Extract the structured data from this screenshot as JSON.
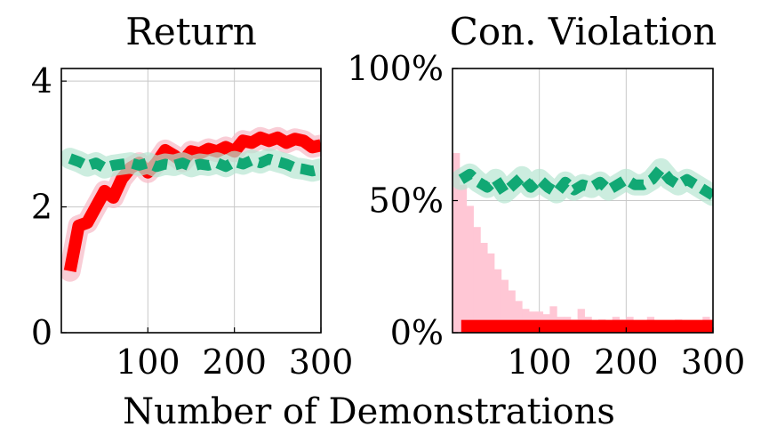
{
  "figure": {
    "shared_xlabel": "Number of Demonstrations"
  },
  "colors": {
    "red": "#ff0000",
    "red_band": "#f6b8c4",
    "green": "#11a874",
    "green_band": "#b7e6d2",
    "hist": "#ffc7d5"
  },
  "chart_data": [
    {
      "type": "line",
      "title": "Return",
      "xlabel": "",
      "ylabel": "",
      "xlim": [
        0,
        300
      ],
      "ylim": [
        0,
        4.2
      ],
      "xticks": [
        100,
        200,
        300
      ],
      "xtick_labels": [
        "100",
        "200",
        "300"
      ],
      "yticks": [
        0,
        2,
        4
      ],
      "ytick_labels": [
        "0",
        "2",
        "4"
      ],
      "grid": true,
      "series": [
        {
          "style": "solid",
          "color": "#ff0000",
          "x": [
            10,
            20,
            30,
            40,
            50,
            60,
            70,
            80,
            90,
            100,
            110,
            120,
            130,
            140,
            150,
            160,
            170,
            180,
            190,
            200,
            210,
            220,
            230,
            240,
            250,
            260,
            270,
            280,
            290,
            300
          ],
          "y": [
            0.98,
            1.7,
            1.75,
            2.0,
            2.25,
            2.15,
            2.45,
            2.62,
            2.7,
            2.55,
            2.7,
            2.9,
            2.82,
            2.72,
            2.88,
            2.85,
            2.92,
            2.88,
            2.95,
            2.88,
            3.05,
            3.02,
            3.1,
            3.05,
            3.1,
            3.02,
            3.08,
            3.05,
            2.95,
            2.98
          ]
        },
        {
          "style": "dashed",
          "color": "#11a874",
          "x": [
            10,
            20,
            30,
            40,
            50,
            60,
            70,
            80,
            90,
            100,
            110,
            120,
            130,
            140,
            150,
            160,
            170,
            180,
            190,
            200,
            210,
            220,
            230,
            240,
            250,
            260,
            270,
            280,
            290,
            300
          ],
          "y": [
            2.77,
            2.72,
            2.65,
            2.7,
            2.62,
            2.66,
            2.68,
            2.7,
            2.66,
            2.7,
            2.64,
            2.68,
            2.66,
            2.7,
            2.64,
            2.68,
            2.66,
            2.7,
            2.64,
            2.72,
            2.68,
            2.74,
            2.7,
            2.76,
            2.72,
            2.68,
            2.62,
            2.6,
            2.57,
            2.6
          ]
        }
      ]
    },
    {
      "type": "line",
      "title": "Con. Violation",
      "xlabel": "",
      "ylabel": "",
      "xlim": [
        0,
        300
      ],
      "ylim": [
        0,
        100
      ],
      "xticks": [
        100,
        200,
        300
      ],
      "xtick_labels": [
        "100",
        "200",
        "300"
      ],
      "yticks": [
        0,
        50,
        100
      ],
      "ytick_labels": [
        "0%",
        "50%",
        "100%"
      ],
      "grid": true,
      "histogram": {
        "color": "#ffc7d5",
        "bin_width": 8,
        "x": [
          4,
          12,
          20,
          28,
          36,
          44,
          52,
          60,
          68,
          76,
          84,
          92,
          100,
          108,
          116,
          124,
          132,
          140,
          148,
          156,
          164,
          172,
          180,
          188,
          196,
          204,
          212,
          220,
          228,
          236,
          244,
          252,
          260,
          268,
          276,
          284,
          292,
          300
        ],
        "values": [
          68,
          56,
          48,
          40,
          34,
          30,
          24,
          20,
          16,
          12,
          9,
          8,
          8,
          7,
          10,
          6,
          6,
          5,
          9,
          6,
          4,
          5,
          4,
          6,
          5,
          6,
          4,
          3,
          6,
          4,
          4,
          3,
          5,
          4,
          3,
          2,
          6,
          5
        ]
      },
      "series": [
        {
          "style": "solid",
          "color": "#ff0000",
          "x": [
            10,
            300
          ],
          "y": [
            2.5,
            2.5
          ]
        },
        {
          "style": "dashed",
          "color": "#11a874",
          "x": [
            10,
            20,
            30,
            40,
            50,
            60,
            70,
            80,
            90,
            100,
            110,
            120,
            130,
            140,
            150,
            160,
            170,
            180,
            190,
            200,
            210,
            220,
            230,
            240,
            250,
            260,
            270,
            280,
            290,
            300
          ],
          "y": [
            58,
            60,
            57,
            55,
            58,
            53,
            56,
            59,
            55,
            58,
            55,
            53,
            57,
            54,
            56,
            55,
            57,
            54,
            56,
            58,
            56,
            56,
            58,
            62,
            58,
            56,
            58,
            56,
            54,
            52
          ]
        }
      ]
    }
  ]
}
